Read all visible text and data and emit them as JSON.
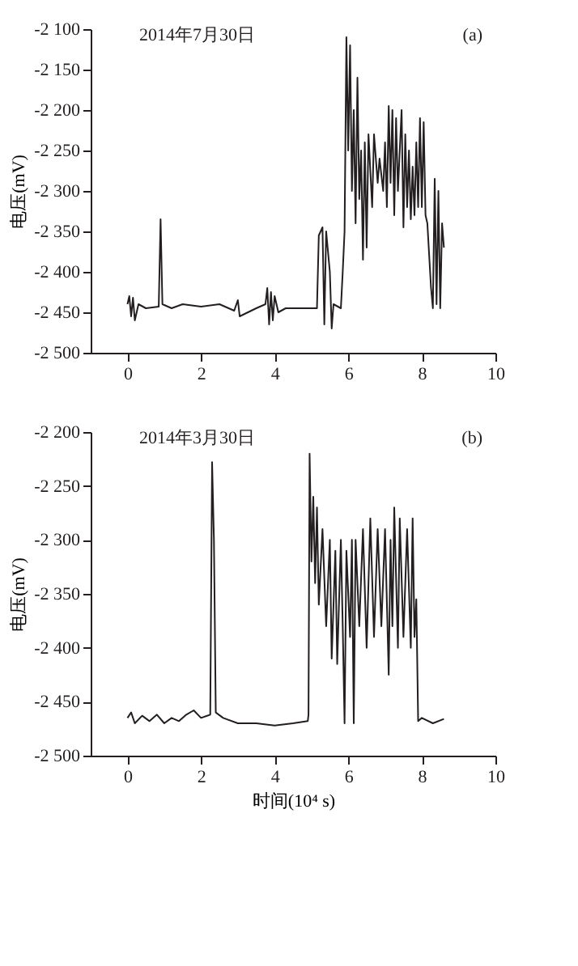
{
  "chart_data": [
    {
      "type": "line",
      "ylabel": "电压(mV)",
      "annotations": [
        "2014年7月30日",
        "(a)"
      ],
      "grid": false,
      "marker": "none",
      "line_style": "solid",
      "xlim": [
        -1,
        10
      ],
      "xticks": [
        0,
        2,
        4,
        6,
        8,
        10
      ],
      "ylim": [
        -2500,
        -2100
      ],
      "yticks": [
        {
          "value": -2500,
          "label": "-2 500"
        },
        {
          "value": -2450,
          "label": "-2 450"
        },
        {
          "value": -2400,
          "label": "-2 400"
        },
        {
          "value": -2350,
          "label": "-2 350"
        },
        {
          "value": -2300,
          "label": "-2 300"
        },
        {
          "value": -2250,
          "label": "-2 250"
        },
        {
          "value": -2200,
          "label": "-2 200"
        },
        {
          "value": -2150,
          "label": "-2 150"
        },
        {
          "value": -2100,
          "label": "-2 100"
        }
      ],
      "series": [
        {
          "color": "#231f20",
          "x": [
            0,
            0.05,
            0.1,
            0.15,
            0.2,
            0.3,
            0.5,
            0.85,
            0.9,
            0.95,
            1.2,
            1.5,
            2,
            2.5,
            2.9,
            3.0,
            3.05,
            3.5,
            3.75,
            3.8,
            3.85,
            3.9,
            3.95,
            4.0,
            4.1,
            4.3,
            5.0,
            5.15,
            5.2,
            5.3,
            5.35,
            5.4,
            5.5,
            5.55,
            5.6,
            5.8,
            5.85,
            5.9,
            5.95,
            6.0,
            6.05,
            6.1,
            6.15,
            6.2,
            6.25,
            6.3,
            6.35,
            6.4,
            6.45,
            6.5,
            6.55,
            6.65,
            6.7,
            6.8,
            6.85,
            6.95,
            7.0,
            7.05,
            7.1,
            7.15,
            7.2,
            7.25,
            7.3,
            7.35,
            7.45,
            7.5,
            7.55,
            7.6,
            7.65,
            7.7,
            7.75,
            7.8,
            7.85,
            7.9,
            7.95,
            8.0,
            8.05,
            8.1,
            8.15,
            8.2,
            8.25,
            8.3,
            8.35,
            8.4,
            8.45,
            8.5,
            8.55,
            8.6
          ],
          "values": [
            -2440,
            -2430,
            -2455,
            -2432,
            -2460,
            -2440,
            -2445,
            -2443,
            -2335,
            -2440,
            -2445,
            -2440,
            -2443,
            -2440,
            -2448,
            -2435,
            -2455,
            -2445,
            -2440,
            -2420,
            -2465,
            -2425,
            -2460,
            -2430,
            -2450,
            -2445,
            -2445,
            -2445,
            -2355,
            -2345,
            -2465,
            -2350,
            -2400,
            -2470,
            -2440,
            -2445,
            -2400,
            -2350,
            -2110,
            -2250,
            -2120,
            -2300,
            -2200,
            -2340,
            -2160,
            -2310,
            -2250,
            -2385,
            -2240,
            -2370,
            -2230,
            -2320,
            -2230,
            -2290,
            -2260,
            -2300,
            -2240,
            -2320,
            -2195,
            -2290,
            -2200,
            -2330,
            -2210,
            -2300,
            -2200,
            -2345,
            -2230,
            -2320,
            -2250,
            -2335,
            -2270,
            -2330,
            -2240,
            -2320,
            -2210,
            -2320,
            -2215,
            -2330,
            -2340,
            -2380,
            -2420,
            -2445,
            -2285,
            -2440,
            -2300,
            -2445,
            -2340,
            -2370
          ]
        }
      ]
    },
    {
      "type": "line",
      "xlabel": "时间(10⁴ s)",
      "ylabel": "电压(mV)",
      "annotations": [
        "2014年3月30日",
        "(b)"
      ],
      "grid": false,
      "marker": "none",
      "line_style": "solid",
      "xlim": [
        -1,
        10
      ],
      "xticks": [
        0,
        2,
        4,
        6,
        8,
        10
      ],
      "ylim": [
        -2500,
        -2200
      ],
      "yticks": [
        {
          "value": -2500,
          "label": "-2 500"
        },
        {
          "value": -2450,
          "label": "-2 450"
        },
        {
          "value": -2400,
          "label": "-2 400"
        },
        {
          "value": -2350,
          "label": "-2 350"
        },
        {
          "value": -2300,
          "label": "-2 300"
        },
        {
          "value": -2250,
          "label": "-2 250"
        },
        {
          "value": -2200,
          "label": "-2 200"
        }
      ],
      "series": [
        {
          "color": "#231f20",
          "x": [
            0,
            0.1,
            0.2,
            0.4,
            0.6,
            0.8,
            1.0,
            1.2,
            1.4,
            1.6,
            1.8,
            2.0,
            2.25,
            2.3,
            2.35,
            2.4,
            2.6,
            3.0,
            3.5,
            4.0,
            4.5,
            4.9,
            4.92,
            4.95,
            5.0,
            5.05,
            5.1,
            5.15,
            5.2,
            5.3,
            5.4,
            5.5,
            5.55,
            5.65,
            5.7,
            5.8,
            5.85,
            5.9,
            5.95,
            6.05,
            6.1,
            6.15,
            6.2,
            6.3,
            6.4,
            6.5,
            6.6,
            6.7,
            6.8,
            6.9,
            7.0,
            7.1,
            7.15,
            7.2,
            7.25,
            7.35,
            7.4,
            7.5,
            7.6,
            7.7,
            7.75,
            7.8,
            7.85,
            7.9,
            8.0,
            8.3,
            8.6
          ],
          "values": [
            -2465,
            -2460,
            -2470,
            -2463,
            -2468,
            -2462,
            -2470,
            -2465,
            -2468,
            -2462,
            -2458,
            -2465,
            -2462,
            -2228,
            -2300,
            -2460,
            -2465,
            -2470,
            -2470,
            -2472,
            -2470,
            -2468,
            -2462,
            -2220,
            -2320,
            -2260,
            -2340,
            -2270,
            -2360,
            -2290,
            -2380,
            -2300,
            -2410,
            -2310,
            -2415,
            -2300,
            -2380,
            -2470,
            -2310,
            -2390,
            -2300,
            -2470,
            -2300,
            -2380,
            -2290,
            -2400,
            -2280,
            -2390,
            -2290,
            -2380,
            -2290,
            -2425,
            -2300,
            -2380,
            -2270,
            -2400,
            -2280,
            -2390,
            -2290,
            -2400,
            -2280,
            -2390,
            -2355,
            -2468,
            -2465,
            -2470,
            -2466
          ]
        }
      ]
    }
  ]
}
